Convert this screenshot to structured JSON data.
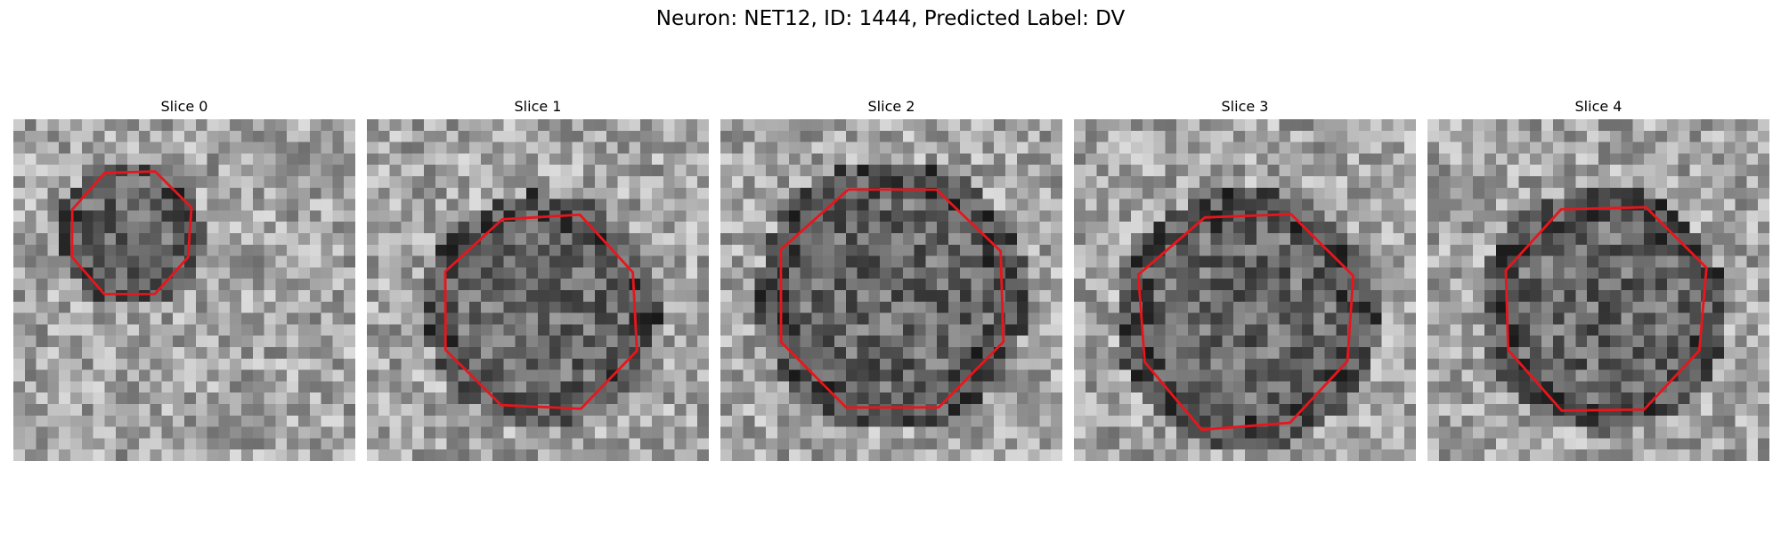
{
  "suptitle": "Neuron: NET12, ID: 1444, Predicted Label: DV",
  "slices": [
    {
      "title": "Slice 0"
    },
    {
      "title": "Slice 1"
    },
    {
      "title": "Slice 2"
    },
    {
      "title": "Slice 3"
    },
    {
      "title": "Slice 4"
    }
  ],
  "colormap": "gray",
  "contour_color": "#e8161c"
}
